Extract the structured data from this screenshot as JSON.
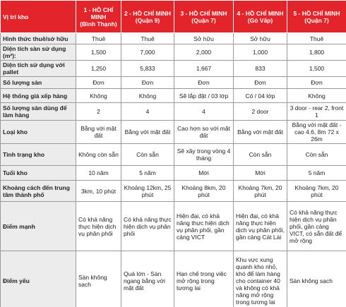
{
  "table": {
    "header": [
      {
        "name": "Vị trí kho"
      },
      {
        "name": "1 - HỒ CHÍ MINH",
        "sub": "(Bình Thạnh)"
      },
      {
        "name": "2 - HỒ CHÍ MINH",
        "sub": "(Quận 9)"
      },
      {
        "name": "3 - HỒ CHÍ MINH",
        "sub": "(Quận 7)"
      },
      {
        "name": "4 - HỒ CHÍ MINH",
        "sub": "(Gò Vấp)"
      },
      {
        "name": "5 - HỒ CHÍ MINH",
        "sub": "(Quận 7)"
      }
    ],
    "rows": [
      [
        "Hình thức thuê/sở hữu",
        "Thuê",
        "Thuê",
        "Sở hữu",
        "Sở hữu",
        "Thuê"
      ],
      [
        "Diện tích sàn sử dụng (m²):",
        "1,500",
        "7,000",
        "2,000",
        "1,000",
        "1,800"
      ],
      [
        "Diện tích sử dụng với pallet",
        "1,250",
        "5,833",
        "1,667",
        "833",
        "1,500"
      ],
      [
        "Số lượng sàn",
        "Đơn",
        "Đơn",
        "Đơn",
        "Đơn",
        "Đơn"
      ],
      [
        "Hệ thống giá xếp hàng",
        "Không",
        "Không",
        "Sẽ lắp đặt / 03 lớp",
        "Có / 04 lớp",
        "Không"
      ],
      [
        "Số lượng sàn dùng để làm hàng",
        "2",
        "4",
        "4",
        "2 door",
        "3 door - rear 2, front 1"
      ],
      [
        "Loại kho",
        "Bằng với mặt đất",
        "Bằng với mặt đất",
        "Cao hơn so với mặt đất",
        "Bằng với mặt đất",
        "Bằng với mặt đất - cao 4.6, 8m 72 x 26m"
      ],
      [
        "Tình trạng kho",
        "Không còn sẵn",
        "Còn sẵn",
        "Sẽ xây trong vòng 4 tháng",
        "Còn sẵn",
        "Còn sẵn"
      ],
      [
        "Tuổi kho",
        "10 năm",
        "5 năm",
        "Mới",
        "Mới",
        "5 năm"
      ],
      [
        "Khoảng cách đến trung tâm thành phố",
        "3km, 10 phút",
        "Khoảng 12km, 25 phút",
        "Khoảng 8km, 20 phút",
        "Khoảng 7km, 20 phút",
        "Khoảng 7km, 20 phút"
      ],
      [
        "Điểm mạnh",
        "Có khả năng thực hiện dịch vụ phân phối",
        "Có khả năng thực hiện dịch vụ phân phối",
        "Hiện đại, có khả năng thực hiện dịch vụ phân phối, gần cảng VICT",
        "Hiện đại, có khả năng thực hiện dịch vụ phân phối, gần cảng Cát Lái",
        "Có khả năng thực hiện dịch vụ phân phối, gần cảng VICT, có sẵn đất để mở rộng"
      ],
      [
        "Điểm yếu",
        "Sàn không sạch",
        "Quá lớn - Sàn ngang bằng với mặt đất",
        "Hạn chế trong việc mở rộng trong tương lai",
        "Khu vực xung quanh kho nhỏ, khó để làm hàng cho container 40 và không có khả năng mở rộng trong tương lai",
        "Sàn không sạch"
      ]
    ]
  }
}
